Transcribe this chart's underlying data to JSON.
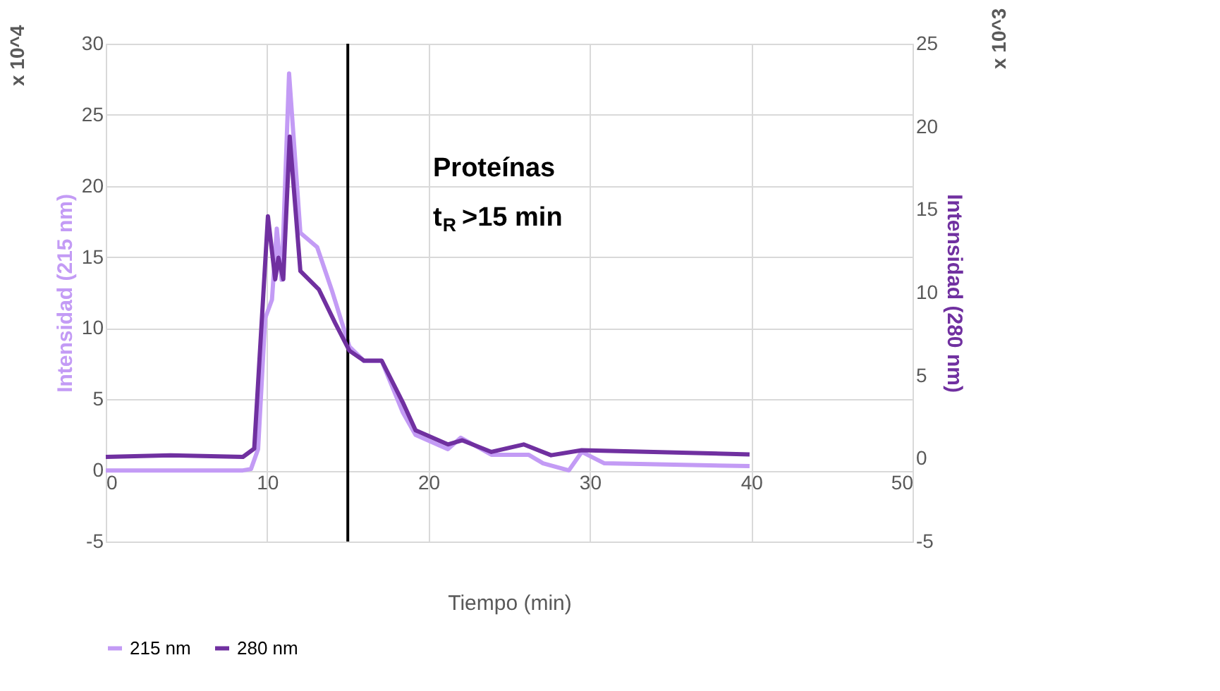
{
  "chart_data": {
    "type": "line",
    "xlabel": "Tiempo (min)",
    "ylabel": "Intensidad (215 nm)",
    "y2label": "Intensidad (280 nm)",
    "xlim": [
      0,
      50
    ],
    "xticks": [
      0,
      10,
      20,
      30,
      40,
      50
    ],
    "ylim": [
      -5,
      30
    ],
    "yticks": [
      -5,
      0,
      5,
      10,
      15,
      20,
      25,
      30
    ],
    "y2lim": [
      -5,
      25
    ],
    "y2ticks": [
      -5,
      0,
      5,
      10,
      15,
      20,
      25
    ],
    "grid": true,
    "legend": "bottom",
    "line_style": "solid",
    "marker": "none",
    "annotations": [
      "x 10^4",
      "x 10^3",
      "Proteínas",
      "t$_{R}$ >15 min"
    ],
    "ref_lines": [
      {
        "axis": "x",
        "value": 15,
        "color": "#000000"
      }
    ],
    "series": [
      {
        "name": "215 nm",
        "color": "#c39bf5",
        "x": [
          0,
          4,
          8.5,
          9.0,
          9.44,
          9.88,
          10.3,
          10.6,
          10.9,
          11.36,
          12.06,
          13.1,
          14.0,
          15.1,
          16.0,
          17.1,
          18.4,
          19.2,
          21.2,
          22.0,
          23.9,
          26.2,
          27.1,
          28.7,
          29.5,
          30.9,
          39.9
        ],
        "values": [
          0,
          0,
          0,
          0.1,
          1.5,
          10.7,
          12.0,
          17.0,
          13.4,
          27.9,
          16.7,
          15.7,
          12.7,
          8.7,
          7.7,
          7.7,
          4.1,
          2.5,
          1.5,
          2.3,
          1.1,
          1.1,
          0.5,
          0,
          1.3,
          0.5,
          0.3
        ]
      },
      {
        "name": "280 nm",
        "color": "#7030a0",
        "axis": "y2",
        "x": [
          0,
          4,
          8.5,
          9.2,
          10.05,
          10.5,
          10.7,
          11.0,
          11.4,
          12.06,
          13.2,
          14.2,
          15.1,
          16.0,
          17.1,
          18.4,
          19.2,
          21.2,
          22.1,
          23.9,
          25.9,
          27.6,
          29.5,
          39.9
        ],
        "values": [
          0.1,
          0.2,
          0.1,
          0.6,
          14.6,
          10.8,
          12.1,
          10.8,
          19.4,
          11.3,
          10.2,
          8.2,
          6.5,
          5.9,
          5.9,
          3.4,
          1.7,
          0.85,
          1.1,
          0.4,
          0.85,
          0.2,
          0.5,
          0.25
        ]
      }
    ]
  }
}
